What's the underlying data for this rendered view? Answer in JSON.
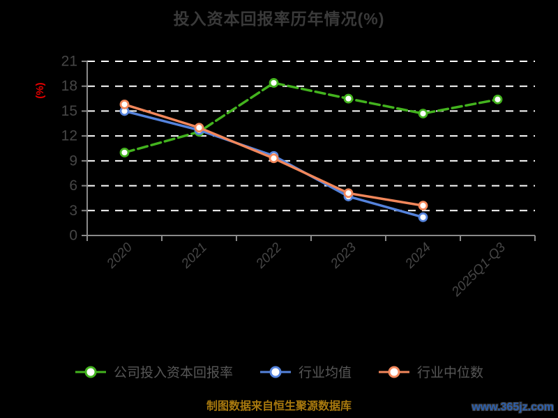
{
  "page": {
    "title": "投入资本回报率历年情况(%)",
    "footer": "制图数据来自恒生聚源数据库",
    "watermark": "www.365jz.com"
  },
  "colors": {
    "background": "#000000",
    "title": "#3a3a3a",
    "axis_line": "#8a8a8a",
    "tick_label": "#464646",
    "gridline": "#ffffff",
    "y_unit_label": "#e60000",
    "legend_text": "#575757",
    "footer_text": "#a8790e",
    "watermark_text": "#2b5fae",
    "company_series": "#43b31e",
    "industry_avg_series": "#5583dc",
    "industry_median_series": "#f2875b",
    "marker_fill": "#ffffff"
  },
  "legend": {
    "items": [
      {
        "label": "公司投入资本回报率",
        "color": "#43b31e",
        "dashed": true
      },
      {
        "label": "行业均值",
        "color": "#5583dc",
        "dashed": false
      },
      {
        "label": "行业中位数",
        "color": "#f2875b",
        "dashed": false
      }
    ]
  },
  "chart_data": {
    "type": "line",
    "title": "投入资本回报率历年情况(%)",
    "categories": [
      "2020",
      "2021",
      "2022",
      "2023",
      "2024",
      "2025Q1-Q3"
    ],
    "series": [
      {
        "name": "公司投入资本回报率",
        "color": "#43b31e",
        "line_style": "dashed",
        "values": [
          10.0,
          12.5,
          18.4,
          16.5,
          14.7,
          16.4
        ]
      },
      {
        "name": "行业均值",
        "color": "#5583dc",
        "line_style": "solid",
        "values": [
          15.0,
          12.7,
          9.6,
          4.7,
          2.2,
          null
        ]
      },
      {
        "name": "行业中位数",
        "color": "#f2875b",
        "line_style": "solid",
        "values": [
          15.8,
          13.0,
          9.3,
          5.1,
          3.6,
          null
        ]
      }
    ],
    "xlabel": "",
    "ylabel": "(%)",
    "ylim": [
      0,
      21
    ],
    "y_ticks": [
      0,
      3,
      6,
      9,
      12,
      15,
      18,
      21
    ],
    "grid": true,
    "grid_style": "dashed",
    "legend_position": "bottom",
    "x_label_rotation": -45
  }
}
